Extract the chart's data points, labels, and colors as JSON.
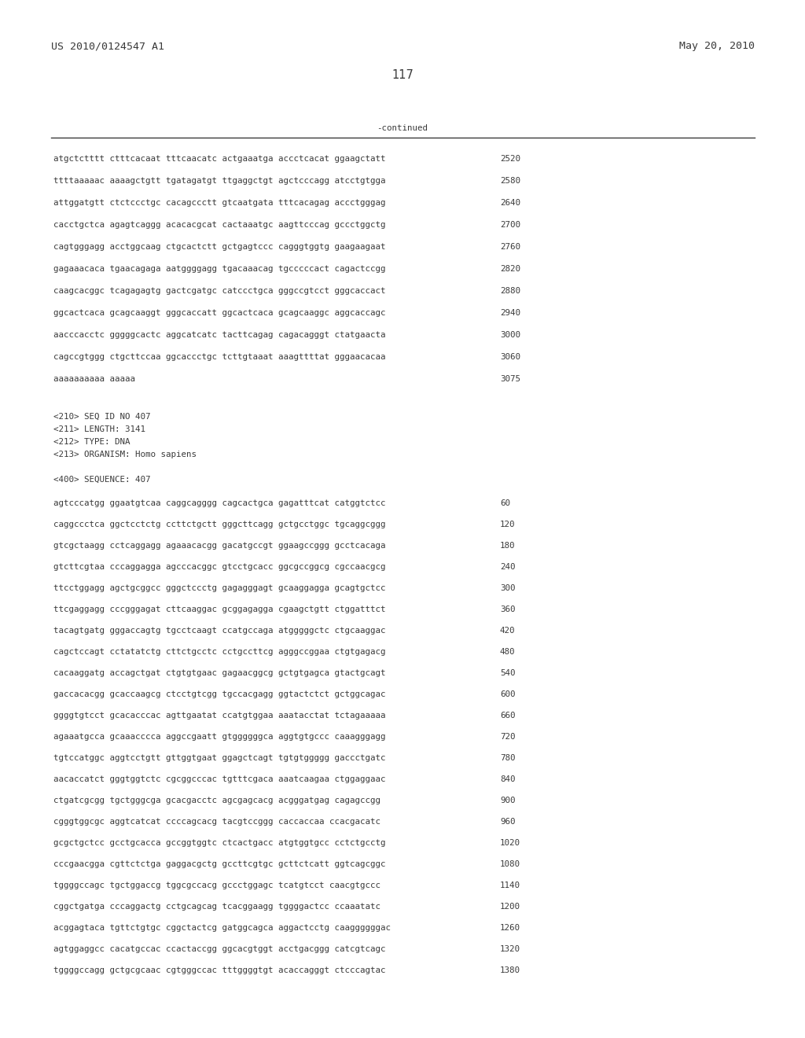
{
  "header_left": "US 2010/0124547 A1",
  "header_right": "May 20, 2010",
  "page_number": "117",
  "continued_label": "-continued",
  "background_color": "#ffffff",
  "text_color": "#3a3a3a",
  "font_size_header": 9.5,
  "font_size_body": 7.8,
  "font_size_page": 10.5,
  "sequence_lines_top": [
    [
      "atgctctttt ctttcacaat tttcaacatc actgaaatga accctcacat ggaagctatt",
      "2520"
    ],
    [
      "ttttaaaaac aaaagctgtt tgatagatgt ttgaggctgt agctcccagg atcctgtgga",
      "2580"
    ],
    [
      "attggatgtt ctctccctgc cacagccctt gtcaatgata tttcacagag accctgggag",
      "2640"
    ],
    [
      "cacctgctca agagtcaggg acacacgcat cactaaatgc aagttcccag gccctggctg",
      "2700"
    ],
    [
      "cagtgggagg acctggcaag ctgcactctt gctgagtccc cagggtggtg gaagaagaat",
      "2760"
    ],
    [
      "gagaaacaca tgaacagaga aatggggagg tgacaaacag tgcccccact cagactccgg",
      "2820"
    ],
    [
      "caagcacggc tcagagagtg gactcgatgc catccctgca gggccgtcct gggcaccact",
      "2880"
    ],
    [
      "ggcactcaca gcagcaaggt gggcaccatt ggcactcaca gcagcaaggc aggcaccagc",
      "2940"
    ],
    [
      "aacccacctc gggggcactc aggcatcatc tacttcagag cagacagggt ctatgaacta",
      "3000"
    ],
    [
      "cagccgtggg ctgcttccaa ggcaccctgc tcttgtaaat aaagttttat gggaacacaa",
      "3060"
    ],
    [
      "aaaaaaaaaa aaaaa",
      "3075"
    ]
  ],
  "metadata_lines": [
    "<210> SEQ ID NO 407",
    "<211> LENGTH: 3141",
    "<212> TYPE: DNA",
    "<213> ORGANISM: Homo sapiens"
  ],
  "sequence_label": "<400> SEQUENCE: 407",
  "sequence_lines_bottom": [
    [
      "agtcccatgg ggaatgtcaa caggcagggg cagcactgca gagatttcat catggtctcc",
      "60"
    ],
    [
      "caggccctca ggctcctctg ccttctgctt gggcttcagg gctgcctggc tgcaggcggg",
      "120"
    ],
    [
      "gtcgctaagg cctcaggagg agaaacacgg gacatgccgt ggaagccggg gcctcacaga",
      "180"
    ],
    [
      "gtcttcgtaa cccaggagga agcccacggc gtcctgcacc ggcgccggcg cgccaacgcg",
      "240"
    ],
    [
      "ttcctggagg agctgcggcc gggctccctg gagagggagt gcaaggagga gcagtgctcc",
      "300"
    ],
    [
      "ttcgaggagg cccgggagat cttcaaggac gcggagagga cgaagctgtt ctggatttct",
      "360"
    ],
    [
      "tacagtgatg gggaccagtg tgcctcaagt ccatgccaga atgggggctc ctgcaaggac",
      "420"
    ],
    [
      "cagctccagt cctatatctg cttctgcctc cctgccttcg agggccggaa ctgtgagacg",
      "480"
    ],
    [
      "cacaaggatg accagctgat ctgtgtgaac gagaacggcg gctgtgagca gtactgcagt",
      "540"
    ],
    [
      "gaccacacgg gcaccaagcg ctcctgtcgg tgccacgagg ggtactctct gctggcagac",
      "600"
    ],
    [
      "ggggtgtcct gcacacccac agttgaatat ccatgtggaa aaatacctat tctagaaaaa",
      "660"
    ],
    [
      "agaaatgcca gcaaacccca aggccgaatt gtggggggca aggtgtgccc caaagggagg",
      "720"
    ],
    [
      "tgtccatggc aggtcctgtt gttggtgaat ggagctcagt tgtgtggggg gaccctgatc",
      "780"
    ],
    [
      "aacaccatct gggtggtctc cgcggcccac tgtttcgaca aaatcaagaa ctggaggaac",
      "840"
    ],
    [
      "ctgatcgcgg tgctgggcga gcacgacctc agcgagcacg acgggatgag cagagccgg",
      "900"
    ],
    [
      "cgggtggcgc aggtcatcat ccccagcacg tacgtccggg caccaccaa ccacgacatc",
      "960"
    ],
    [
      "gcgctgctcc gcctgcacca gccggtggtc ctcactgacc atgtggtgcc cctctgcctg",
      "1020"
    ],
    [
      "cccgaacgga cgttctctga gaggacgctg gccttcgtgc gcttctcatt ggtcagcggc",
      "1080"
    ],
    [
      "tggggccagc tgctggaccg tggcgccacg gccctggagc tcatgtcct caacgtgccc",
      "1140"
    ],
    [
      "cggctgatga cccaggactg cctgcagcag tcacggaagg tggggactcc ccaaatatc",
      "1200"
    ],
    [
      "acggagtaca tgttctgtgc cggctactcg gatggcagca aggactcctg caaggggggac",
      "1260"
    ],
    [
      "agtggaggcc cacatgccac ccactaccgg ggcacgtggt acctgacggg catcgtcagc",
      "1320"
    ],
    [
      "tggggccagg gctgcgcaac cgtgggccac tttggggtgt acaccagggt ctcccagtac",
      "1380"
    ]
  ]
}
